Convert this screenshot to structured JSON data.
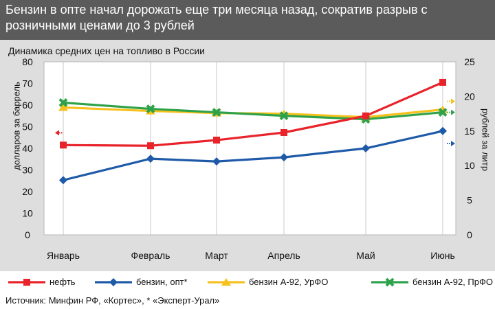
{
  "header": {
    "title": "Бензин в опте начал дорожать еще три месяца назад, сократив разрыв с розничными ценами до 3 рублей"
  },
  "chart_data": {
    "type": "line",
    "title": "Динамика средних цен на топливо в России",
    "categories": [
      "Январь",
      "Февраль",
      "Март",
      "Апрель",
      "Май",
      "Июнь"
    ],
    "y_left": {
      "label": "долларов за баррель",
      "range": [
        0,
        80
      ],
      "ticks": [
        "0",
        "10",
        "20",
        "30",
        "40",
        "50",
        "60",
        "70",
        "80"
      ]
    },
    "y_right": {
      "label": "рублей за литр",
      "range": [
        0,
        25
      ],
      "ticks": [
        "0",
        "5",
        "10",
        "15",
        "20",
        "25"
      ]
    },
    "grid": true,
    "legend_position": "bottom",
    "series": [
      {
        "name": "нефть",
        "axis": "left",
        "color": "#e8232a",
        "marker": "square",
        "values": [
          41.5,
          41.2,
          43.8,
          47.3,
          55.0,
          70.5
        ],
        "arrow": "left",
        "arrow_value": 47.2
      },
      {
        "name": "бензин, опт*",
        "axis": "right",
        "color": "#1e5aa8",
        "marker": "diamond",
        "values": [
          7.9,
          11.0,
          10.6,
          11.2,
          12.5,
          15.0
        ],
        "arrow": "right",
        "arrow_value": 13.2
      },
      {
        "name": "бензин А-92, УрФО",
        "axis": "right",
        "color": "#f6c11d",
        "marker": "triangle",
        "values": [
          18.4,
          17.9,
          17.6,
          17.5,
          17.0,
          18.1
        ],
        "arrow": "right",
        "arrow_value": 19.3
      },
      {
        "name": "бензин А-92, ПрФО",
        "axis": "right",
        "color": "#2ea24a",
        "marker": "x",
        "values": [
          19.1,
          18.2,
          17.7,
          17.2,
          16.7,
          17.7
        ],
        "arrow": "right",
        "arrow_value": 17.7
      }
    ]
  },
  "source": "Источник: Минфин РФ, «Кортес», * «Эксперт-Урал»"
}
